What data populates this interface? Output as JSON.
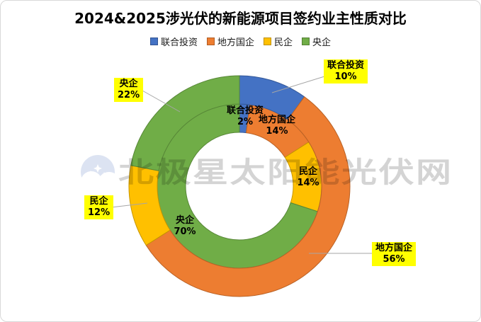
{
  "title": "2024&2025涉光伏的新能源项目签约业主性质对比",
  "legend": {
    "items": [
      {
        "label": "联合投资",
        "color": "#4472C4"
      },
      {
        "label": "地方国企",
        "color": "#ED7D31"
      },
      {
        "label": "民企",
        "color": "#FFC000"
      },
      {
        "label": "央企",
        "color": "#70AD47"
      }
    ]
  },
  "chart_data": {
    "type": "donut",
    "title": "2024&2025涉光伏的新能源项目签约业主性质对比",
    "categories": [
      "联合投资",
      "地方国企",
      "民企",
      "央企"
    ],
    "slugs": [
      "joint-investment",
      "local-soe",
      "private-enterprise",
      "central-soe"
    ],
    "colors": [
      "#4472C4",
      "#ED7D31",
      "#FFC000",
      "#70AD47"
    ],
    "units": "percent",
    "start_angle_deg": 0,
    "direction": "clockwise",
    "legend_position": "top",
    "series": [
      {
        "name": "inner-ring",
        "values": [
          2,
          14,
          14,
          70
        ],
        "labels": [
          {
            "text": "联合投资",
            "percent": "2%"
          },
          {
            "text": "地方国企",
            "percent": "14%"
          },
          {
            "text": "民企",
            "percent": "14%"
          },
          {
            "text": "央企",
            "percent": "70%"
          }
        ]
      },
      {
        "name": "outer-ring",
        "values": [
          10,
          56,
          12,
          22
        ],
        "labels": [
          {
            "text": "联合投资",
            "percent": "10%"
          },
          {
            "text": "地方国企",
            "percent": "56%"
          },
          {
            "text": "民企",
            "percent": "12%"
          },
          {
            "text": "央企",
            "percent": "22%"
          }
        ]
      }
    ]
  },
  "styles": {
    "callout_bg": "#FFFF00",
    "leader_line_color": "#A6A6A6",
    "watermark_color": "#7a7a7a"
  },
  "watermark": {
    "text": "北极星太阳能光伏网",
    "logo": "crescent-moon-stars"
  }
}
